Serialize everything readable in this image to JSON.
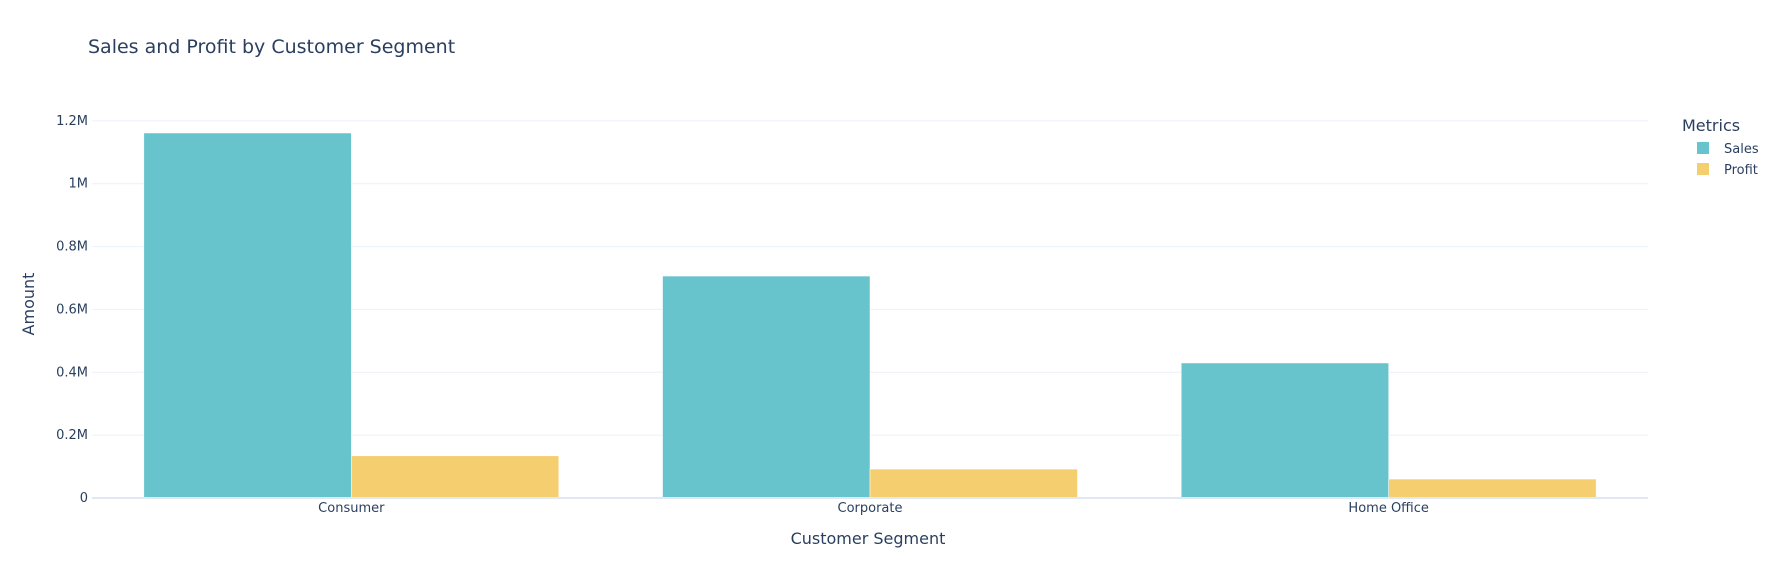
{
  "chart_data": {
    "type": "bar",
    "title": "Sales and Profit by Customer Segment",
    "xlabel": "Customer Segment",
    "ylabel": "Amount",
    "categories": [
      "Consumer",
      "Corporate",
      "Home Office"
    ],
    "series": [
      {
        "name": "Sales",
        "color": "#67c4cc",
        "values": [
          1161401,
          706146,
          429653
        ]
      },
      {
        "name": "Profit",
        "color": "#f5ce6f",
        "values": [
          134119,
          91979,
          60299
        ]
      }
    ],
    "ylim": [
      0,
      1.26
    ],
    "yscale": 1000000,
    "yticks": [
      {
        "value": 0,
        "label": "0"
      },
      {
        "value": 0.2,
        "label": "0.2M"
      },
      {
        "value": 0.4,
        "label": "0.4M"
      },
      {
        "value": 0.6,
        "label": "0.6M"
      },
      {
        "value": 0.8,
        "label": "0.8M"
      },
      {
        "value": 1.0,
        "label": "1M"
      },
      {
        "value": 1.2,
        "label": "1.2M"
      }
    ],
    "grid": true,
    "legend": {
      "title": "Metrics",
      "position": "top-right"
    }
  }
}
